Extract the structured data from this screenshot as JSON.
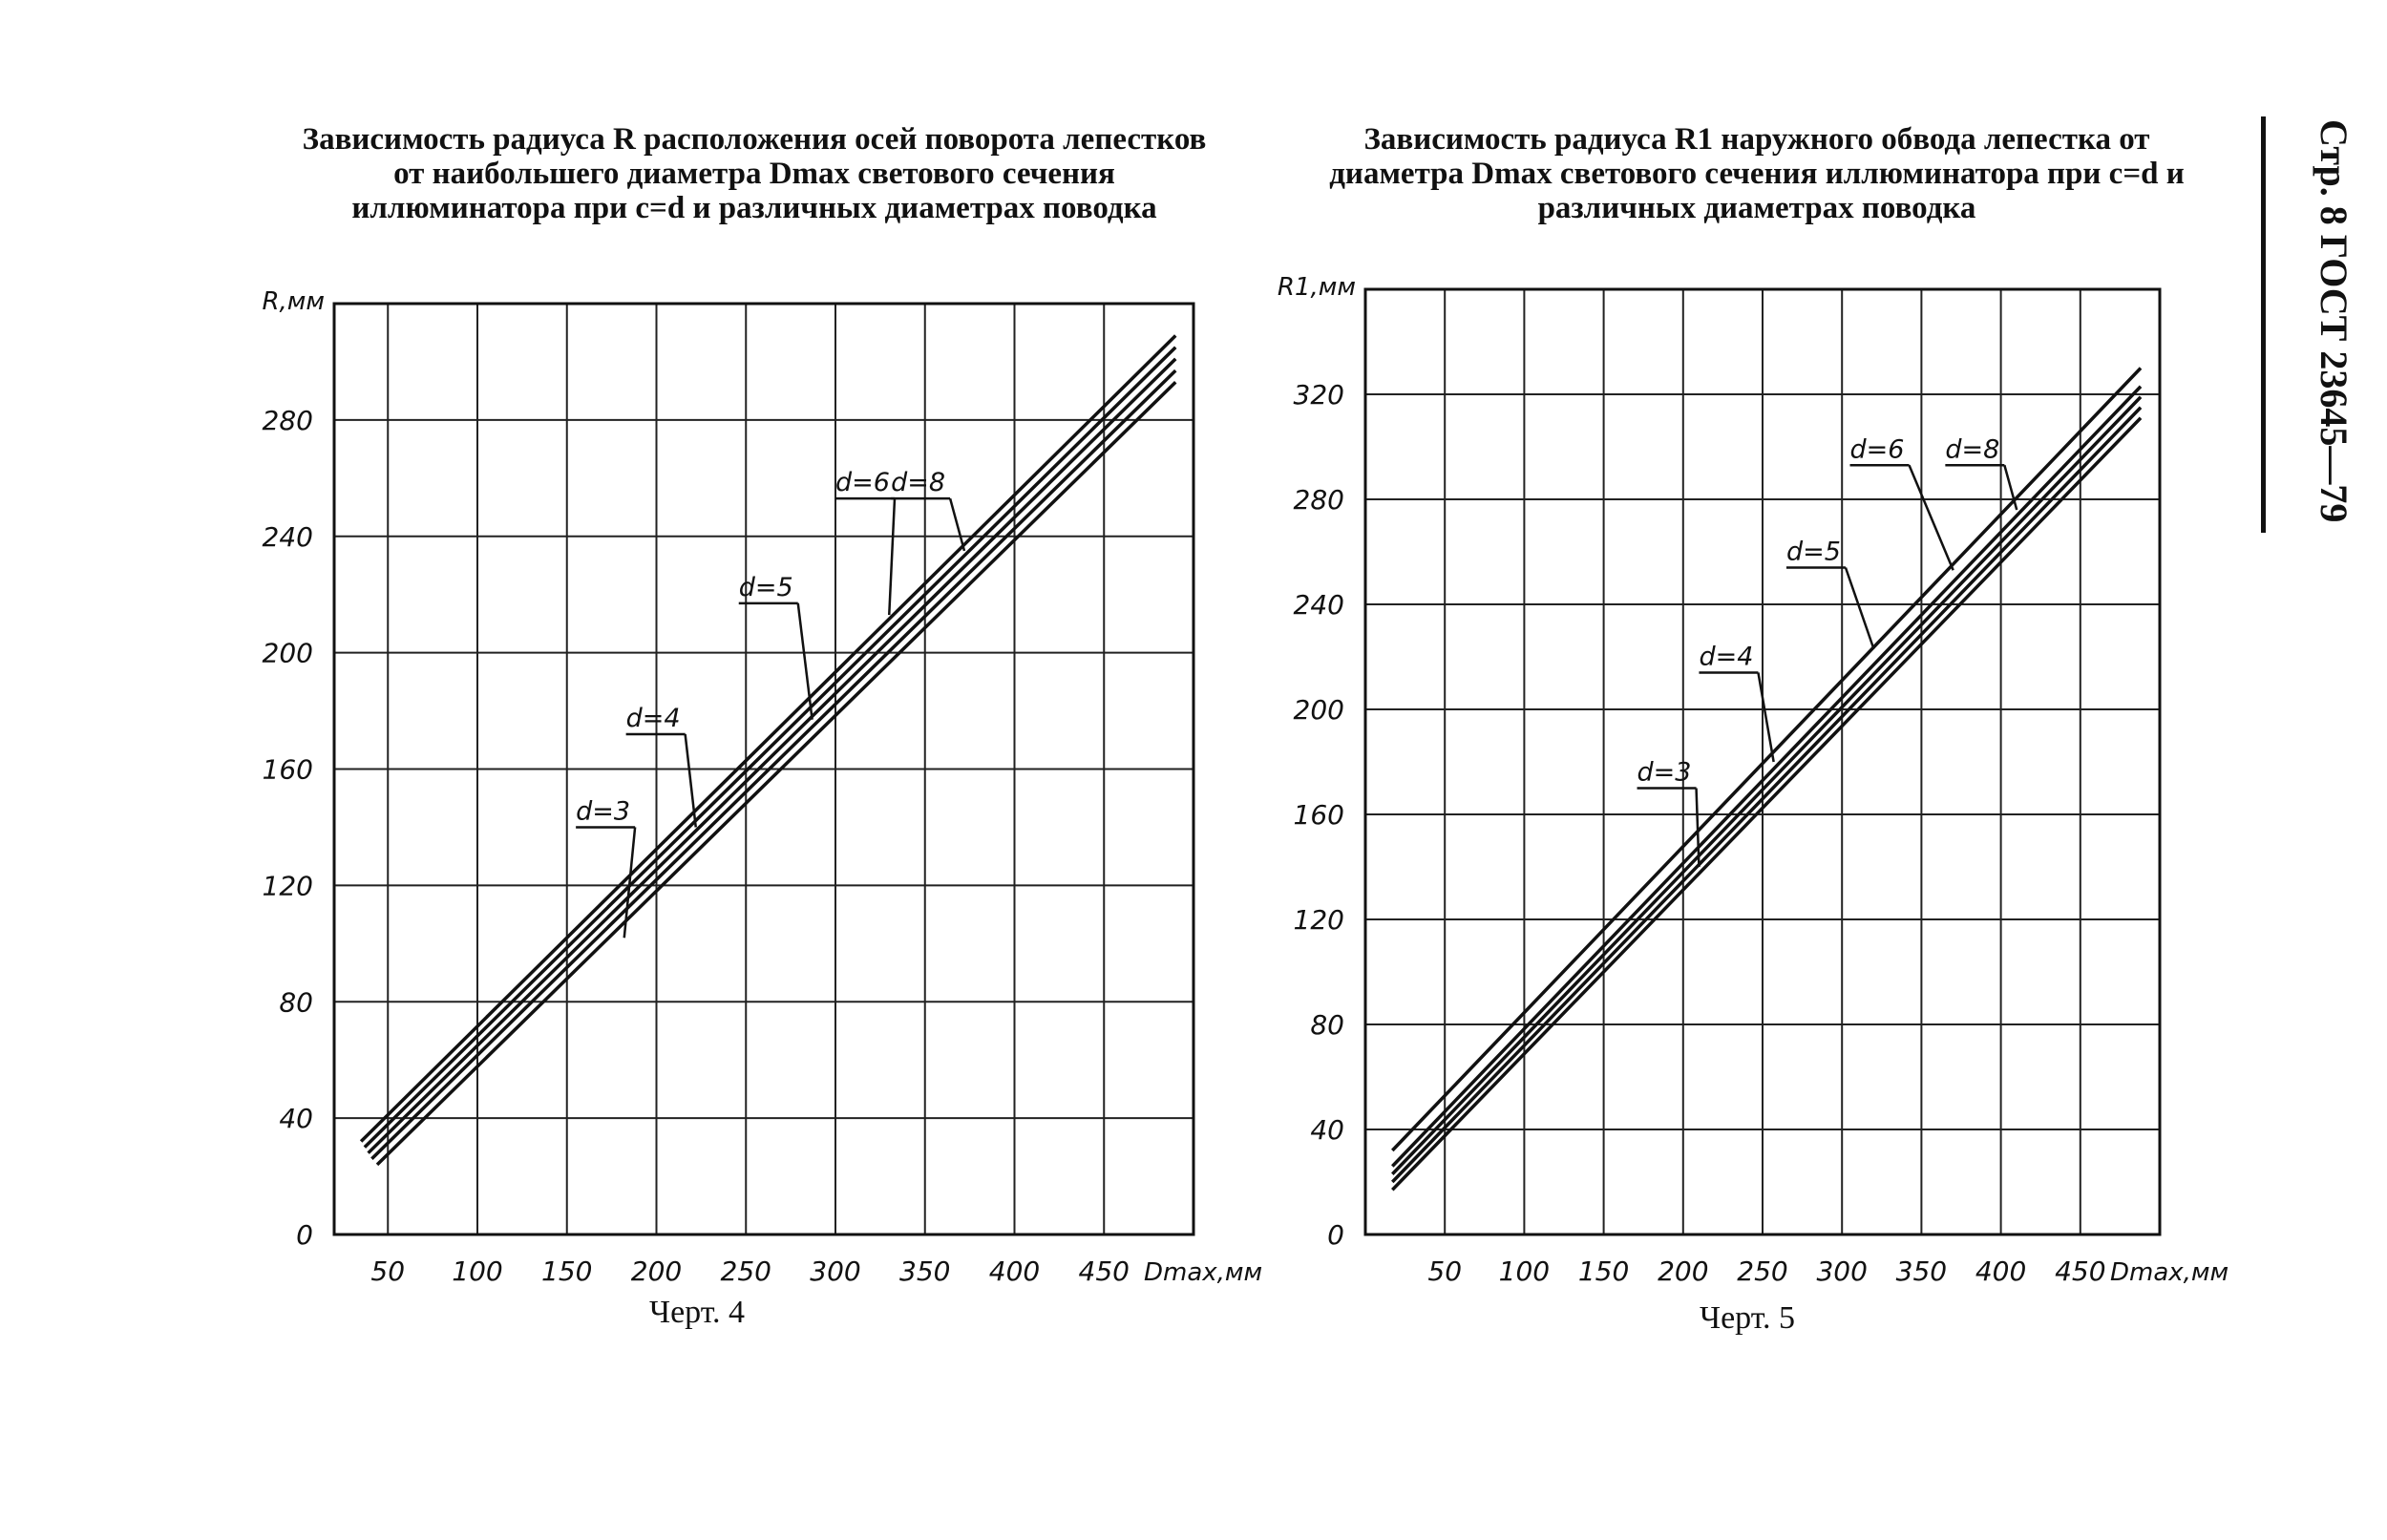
{
  "side_header": {
    "text": "Стр. 8 ГОСТ 23645—79"
  },
  "chart_data": [
    {
      "id": "left",
      "type": "line",
      "title": "Зависимость радиуса R расположения  осей поворота лепестков от наибольшего диаметра Dmax светового сечения иллюминатора при c=d и различных диаметрах поводка",
      "caption": "Черт. 4",
      "xlabel": "Dmax,мм",
      "ylabel": "R,мм",
      "xlim": [
        20,
        500
      ],
      "ylim": [
        0,
        320
      ],
      "x_ticks": [
        50,
        100,
        150,
        200,
        250,
        300,
        350,
        400,
        450
      ],
      "y_ticks": [
        0,
        40,
        80,
        120,
        160,
        200,
        240,
        280
      ],
      "grid": true,
      "series": [
        {
          "name": "d=3",
          "x": [
            35,
            490
          ],
          "y": [
            32,
            309
          ]
        },
        {
          "name": "d=4",
          "x": [
            37,
            490
          ],
          "y": [
            30,
            305
          ]
        },
        {
          "name": "d=5",
          "x": [
            39,
            490
          ],
          "y": [
            28,
            301
          ]
        },
        {
          "name": "d=6",
          "x": [
            41,
            490
          ],
          "y": [
            26,
            297
          ]
        },
        {
          "name": "d=8",
          "x": [
            44,
            490
          ],
          "y": [
            24,
            293
          ]
        }
      ],
      "annotations": [
        {
          "text": "d=3",
          "x": 155,
          "y": 140,
          "target_x": 182,
          "target_y": 102
        },
        {
          "text": "d=4",
          "x": 183,
          "y": 172,
          "target_x": 222,
          "target_y": 140
        },
        {
          "text": "d=5",
          "x": 246,
          "y": 217,
          "target_x": 287,
          "target_y": 177
        },
        {
          "text": "d=6",
          "x": 300,
          "y": 253,
          "target_x": 330,
          "target_y": 213
        },
        {
          "text": "d=8",
          "x": 331,
          "y": 253,
          "target_x": 372,
          "target_y": 235
        }
      ]
    },
    {
      "id": "right",
      "type": "line",
      "title": "Зависимость радиуса R1 наружного обвода лепестка от диаметра Dmax светового сечения иллюминатора при c=d и различных диаметрах поводка",
      "caption": "Черт. 5",
      "xlabel": "Dmax,мм",
      "ylabel": "R1,мм",
      "xlim": [
        0,
        500
      ],
      "ylim": [
        0,
        360
      ],
      "x_ticks": [
        50,
        100,
        150,
        200,
        250,
        300,
        350,
        400,
        450
      ],
      "y_ticks": [
        0,
        40,
        80,
        120,
        160,
        200,
        240,
        280,
        320
      ],
      "grid": true,
      "series": [
        {
          "name": "d=3",
          "x": [
            17,
            488
          ],
          "y": [
            32,
            330
          ]
        },
        {
          "name": "d=4",
          "x": [
            17,
            488
          ],
          "y": [
            26,
            323
          ]
        },
        {
          "name": "d=5",
          "x": [
            17,
            488
          ],
          "y": [
            23,
            319
          ]
        },
        {
          "name": "d=6",
          "x": [
            17,
            488
          ],
          "y": [
            20,
            315
          ]
        },
        {
          "name": "d=8",
          "x": [
            17,
            488
          ],
          "y": [
            17,
            311
          ]
        }
      ],
      "annotations": [
        {
          "text": "d=3",
          "x": 171,
          "y": 170,
          "target_x": 210,
          "target_y": 140
        },
        {
          "text": "d=4",
          "x": 210,
          "y": 214,
          "target_x": 257,
          "target_y": 180
        },
        {
          "text": "d=5",
          "x": 265,
          "y": 254,
          "target_x": 320,
          "target_y": 223
        },
        {
          "text": "d=6",
          "x": 305,
          "y": 293,
          "target_x": 370,
          "target_y": 253
        },
        {
          "text": "d=8",
          "x": 365,
          "y": 293,
          "target_x": 410,
          "target_y": 276
        }
      ]
    }
  ]
}
